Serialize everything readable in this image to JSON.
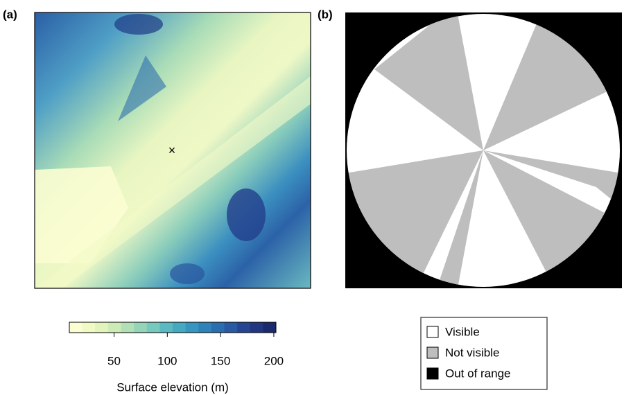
{
  "panels": [
    {
      "label": "(a)"
    },
    {
      "label": "(b)"
    }
  ],
  "colorbar": {
    "title": "Surface elevation (m)",
    "range": [
      8,
      202
    ],
    "ticks": [
      50,
      100,
      150,
      200
    ],
    "colors": [
      "#fbfdd2",
      "#f1f9c4",
      "#e2f3bb",
      "#cdebb6",
      "#b2e0b6",
      "#95d4b9",
      "#77c8be",
      "#5bbac1",
      "#45a9c2",
      "#3796c0",
      "#2e82ba",
      "#2a6eb0",
      "#2859a2",
      "#254592",
      "#213580",
      "#1a2a6c"
    ]
  },
  "legend": {
    "items": [
      {
        "label": "Visible",
        "color": "#ffffff"
      },
      {
        "label": "Not visible",
        "color": "#bebebe"
      },
      {
        "label": "Out of range",
        "color": "#000000"
      }
    ]
  }
}
